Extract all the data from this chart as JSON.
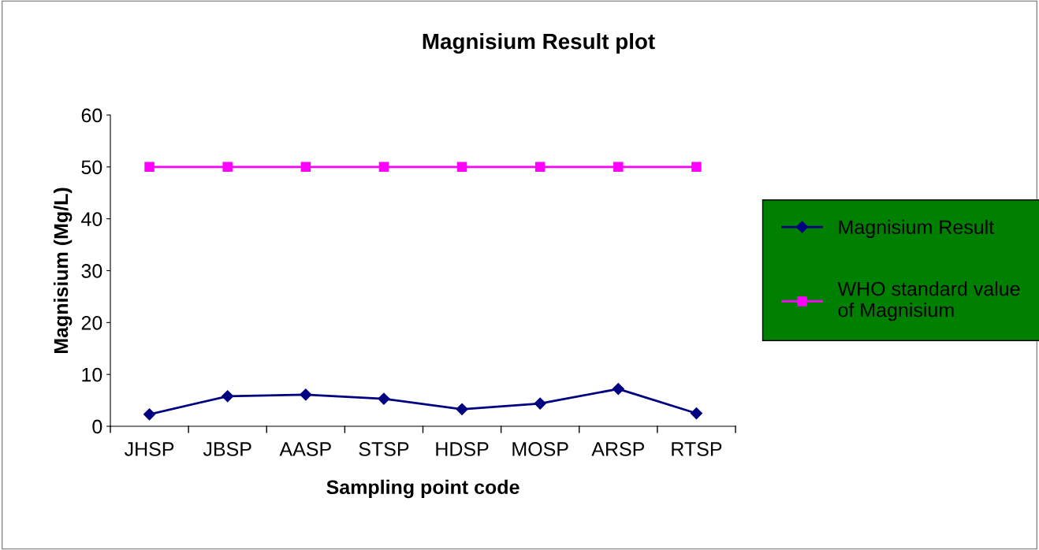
{
  "chart_data": {
    "type": "line",
    "title": "Magnisium Result plot",
    "xlabel": "Sampling point code",
    "ylabel": "Magnisium (Mg/L)",
    "categories": [
      "JHSP",
      "JBSP",
      "AASP",
      "STSP",
      "HDSP",
      "MOSP",
      "ARSP",
      "RTSP"
    ],
    "series": [
      {
        "name": "Magnisium Result",
        "color": "#000080",
        "marker": "diamond",
        "values": [
          2.3,
          5.8,
          6.1,
          5.3,
          3.3,
          4.4,
          7.2,
          2.5
        ]
      },
      {
        "name": "WHO standard value\nof Magnisium",
        "color": "#ff00ff",
        "marker": "square",
        "values": [
          50,
          50,
          50,
          50,
          50,
          50,
          50,
          50
        ]
      }
    ],
    "ylim": [
      0,
      60
    ],
    "yticks": [
      0,
      10,
      20,
      30,
      40,
      50,
      60
    ],
    "grid": false,
    "legend": "right"
  }
}
